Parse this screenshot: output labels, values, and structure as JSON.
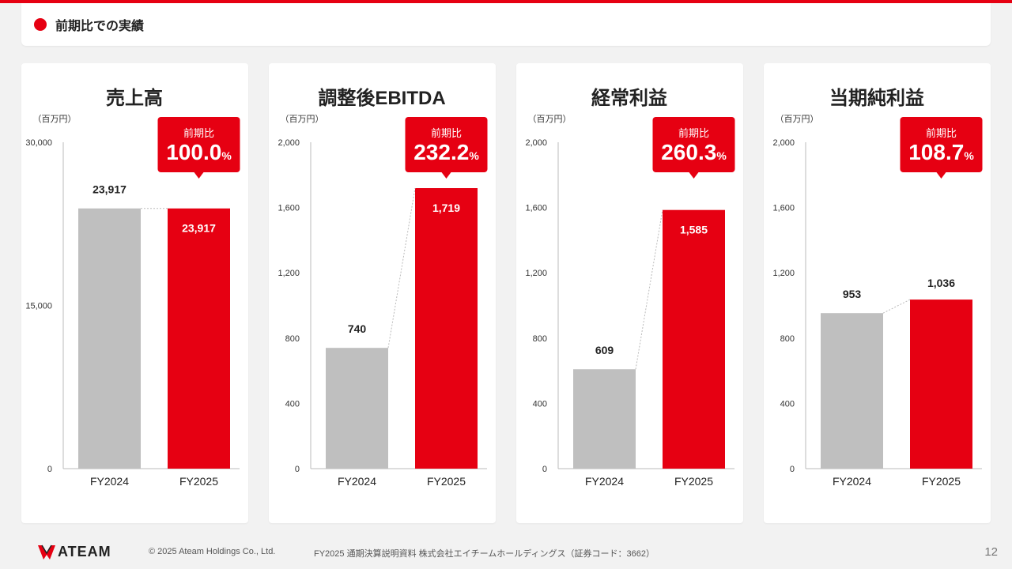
{
  "header": {
    "title": "前期比での実績"
  },
  "chart_data": [
    {
      "type": "bar",
      "title": "売上高",
      "unit": "（百万円）",
      "categories": [
        "FY2024",
        "FY2025"
      ],
      "values": [
        23917,
        23917
      ],
      "value_labels": [
        "23,917",
        "23,917"
      ],
      "yticks": [
        "0",
        "15,000",
        "30,000"
      ],
      "ylim": [
        0,
        30000
      ],
      "ratio_label": "前期比",
      "ratio_value": "100.0",
      "ratio_unit": "%",
      "bar_colors": [
        "#bfbfbf",
        "#e60012"
      ]
    },
    {
      "type": "bar",
      "title": "調整後EBITDA",
      "unit": "（百万円）",
      "categories": [
        "FY2024",
        "FY2025"
      ],
      "values": [
        740,
        1719
      ],
      "value_labels": [
        "740",
        "1,719"
      ],
      "yticks": [
        "0",
        "400",
        "800",
        "1,200",
        "1,600",
        "2,000"
      ],
      "ylim": [
        0,
        2000
      ],
      "ratio_label": "前期比",
      "ratio_value": "232.2",
      "ratio_unit": "%",
      "bar_colors": [
        "#bfbfbf",
        "#e60012"
      ]
    },
    {
      "type": "bar",
      "title": "経常利益",
      "unit": "（百万円）",
      "categories": [
        "FY2024",
        "FY2025"
      ],
      "values": [
        609,
        1585
      ],
      "value_labels": [
        "609",
        "1,585"
      ],
      "yticks": [
        "0",
        "400",
        "800",
        "1,200",
        "1,600",
        "2,000"
      ],
      "ylim": [
        0,
        2000
      ],
      "ratio_label": "前期比",
      "ratio_value": "260.3",
      "ratio_unit": "%",
      "bar_colors": [
        "#bfbfbf",
        "#e60012"
      ]
    },
    {
      "type": "bar",
      "title": "当期純利益",
      "unit": "（百万円）",
      "categories": [
        "FY2024",
        "FY2025"
      ],
      "values": [
        953,
        1036
      ],
      "value_labels": [
        "953",
        "1,036"
      ],
      "yticks": [
        "0",
        "400",
        "800",
        "1,200",
        "1,600",
        "2,000"
      ],
      "ylim": [
        0,
        2000
      ],
      "ratio_label": "前期比",
      "ratio_value": "108.7",
      "ratio_unit": "%",
      "bar_colors": [
        "#bfbfbf",
        "#e60012"
      ]
    }
  ],
  "footer": {
    "logo_text": "ATEAM",
    "copyright": "© 2025 Ateam Holdings Co., Ltd.",
    "doc_title": "FY2025 通期決算説明資料 株式会社エイチームホールディングス（証券コード：3662）",
    "page_number": "12"
  },
  "colors": {
    "accent": "#e60012",
    "previous_bar": "#bfbfbf"
  }
}
